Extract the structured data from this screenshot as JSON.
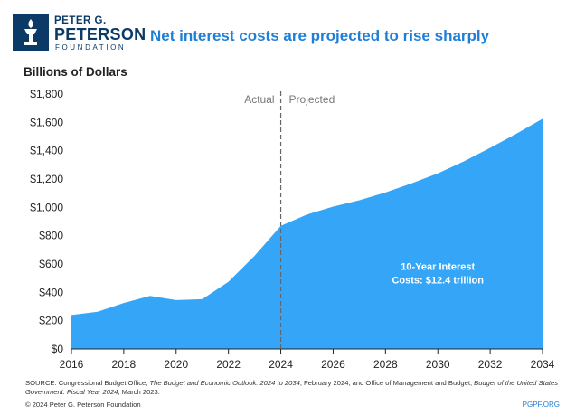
{
  "header": {
    "logo_line1": "PETER G.",
    "logo_line2": "PETERSON",
    "logo_line3": "FOUNDATION",
    "title": "Net interest costs are projected to rise sharply"
  },
  "colors": {
    "area": "#35a6f7",
    "title": "#1f7fd6",
    "brand": "#0b3a66"
  },
  "chart_data": {
    "type": "area",
    "title": "Net interest costs are projected to rise sharply",
    "ylabel": "Billions of Dollars",
    "xlabel": "",
    "x": [
      2016,
      2017,
      2018,
      2019,
      2020,
      2021,
      2022,
      2023,
      2024,
      2025,
      2026,
      2027,
      2028,
      2029,
      2030,
      2031,
      2032,
      2033,
      2034
    ],
    "values": [
      240,
      263,
      325,
      375,
      345,
      352,
      475,
      658,
      870,
      950,
      1005,
      1050,
      1105,
      1170,
      1240,
      1325,
      1420,
      1520,
      1625
    ],
    "xlim": [
      2016,
      2034
    ],
    "ylim": [
      0,
      1800
    ],
    "y_ticks": [
      0,
      200,
      400,
      600,
      800,
      1000,
      1200,
      1400,
      1600,
      1800
    ],
    "y_tick_labels": [
      "$0",
      "$200",
      "$400",
      "$600",
      "$800",
      "$1,000",
      "$1,200",
      "$1,400",
      "$1,600",
      "$1,800"
    ],
    "x_ticks": [
      2016,
      2018,
      2020,
      2022,
      2024,
      2026,
      2028,
      2030,
      2032,
      2034
    ],
    "x_tick_labels": [
      "2016",
      "2018",
      "2020",
      "2022",
      "2024",
      "2026",
      "2028",
      "2030",
      "2032",
      "2034"
    ],
    "divider_x": 2024,
    "actual_label": "Actual",
    "projected_label": "Projected",
    "annotation_line1": "10-Year Interest",
    "annotation_line2": "Costs: $12.4 trillion",
    "annotation_x": 2030,
    "annotation_y": 560,
    "grid": false
  },
  "footer": {
    "source_lead": "SOURCE: Congressional Budget Office, ",
    "source_title1": "The Budget and Economic Outlook: 2024 to 2034",
    "source_mid": ", February 2024; and Office of Management and Budget, ",
    "source_title2": "Budget of the United States Government: Fiscal Year 2024",
    "source_tail": ", March 2023.",
    "copyright": "© 2024 Peter G. Peterson Foundation",
    "site": "PGPF.ORG"
  }
}
